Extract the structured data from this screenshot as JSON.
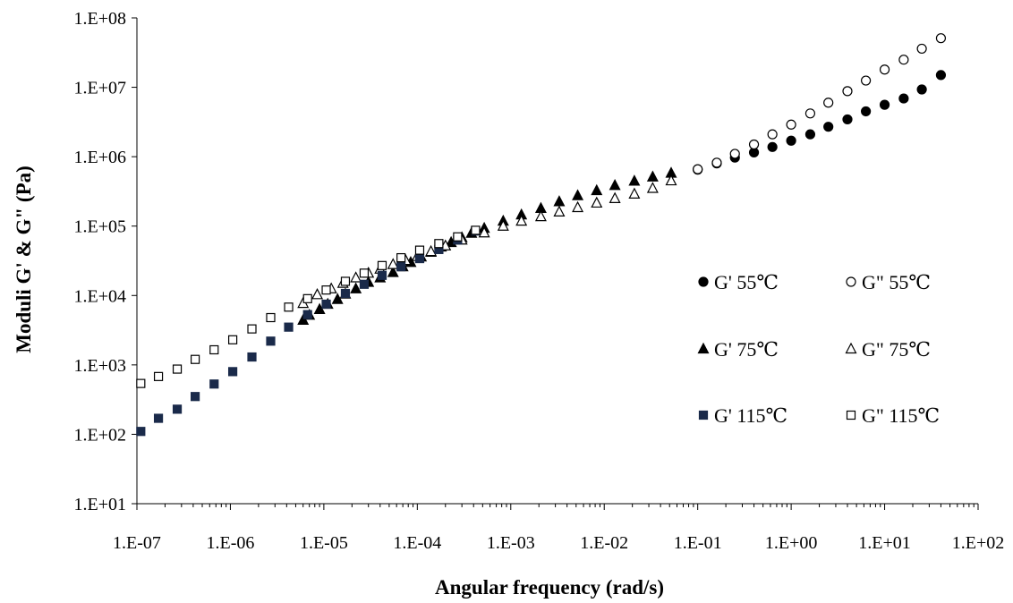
{
  "chart_data": {
    "type": "scatter",
    "title": "",
    "xlabel": "Angular frequency (rad/s)",
    "ylabel": "Moduli G' & G\" (Pa)",
    "xscale": "log",
    "yscale": "log",
    "xlim": [
      1e-07,
      100
    ],
    "ylim": [
      10,
      100000000
    ],
    "grid": false,
    "legend_position": "right, middle",
    "x_ticks": [
      {
        "value": 1e-07,
        "label": "1.E-07"
      },
      {
        "value": 1e-06,
        "label": "1.E-06"
      },
      {
        "value": 1e-05,
        "label": "1.E-05"
      },
      {
        "value": 0.0001,
        "label": "1.E-04"
      },
      {
        "value": 0.001,
        "label": "1.E-03"
      },
      {
        "value": 0.01,
        "label": "1.E-02"
      },
      {
        "value": 0.1,
        "label": "1.E-01"
      },
      {
        "value": 1,
        "label": "1.E+00"
      },
      {
        "value": 10,
        "label": "1.E+01"
      },
      {
        "value": 100,
        "label": "1.E+02"
      }
    ],
    "y_ticks": [
      {
        "value": 10,
        "label": "1.E+01"
      },
      {
        "value": 100,
        "label": "1.E+02"
      },
      {
        "value": 1000,
        "label": "1.E+03"
      },
      {
        "value": 10000,
        "label": "1.E+04"
      },
      {
        "value": 100000,
        "label": "1.E+05"
      },
      {
        "value": 1000000,
        "label": "1.E+06"
      },
      {
        "value": 10000000,
        "label": "1.E+07"
      },
      {
        "value": 100000000,
        "label": "1.E+08"
      }
    ],
    "series": [
      {
        "name": "G' 55℃",
        "marker": "circle",
        "filled": true,
        "color": "#000000",
        "points": [
          [
            0.1,
            650000.0
          ],
          [
            0.16,
            800000.0
          ],
          [
            0.25,
            970000.0
          ],
          [
            0.4,
            1150000.0
          ],
          [
            0.63,
            1380000.0
          ],
          [
            1.0,
            1700000.0
          ],
          [
            1.6,
            2100000.0
          ],
          [
            2.5,
            2700000.0
          ],
          [
            4.0,
            3450000.0
          ],
          [
            6.3,
            4500000.0
          ],
          [
            10,
            5600000.0
          ],
          [
            16,
            6900000.0
          ],
          [
            25,
            9300000.0
          ],
          [
            40,
            15000000.0
          ]
        ]
      },
      {
        "name": "G\" 55℃",
        "marker": "circle",
        "filled": false,
        "color": "#000000",
        "points": [
          [
            0.1,
            660000.0
          ],
          [
            0.16,
            820000.0
          ],
          [
            0.25,
            1100000.0
          ],
          [
            0.4,
            1500000.0
          ],
          [
            0.63,
            2100000.0
          ],
          [
            1.0,
            2900000.0
          ],
          [
            1.6,
            4200000.0
          ],
          [
            2.5,
            6000000.0
          ],
          [
            4.0,
            8800000.0
          ],
          [
            6.3,
            12500000.0
          ],
          [
            10,
            18000000.0
          ],
          [
            16,
            25000000.0
          ],
          [
            25,
            36000000.0
          ],
          [
            40,
            51000000.0
          ]
        ]
      },
      {
        "name": "G' 75℃",
        "marker": "triangle",
        "filled": true,
        "color": "#000000",
        "points": [
          [
            6e-06,
            4400.0
          ],
          [
            7e-06,
            5200.0
          ],
          [
            9e-06,
            6300.0
          ],
          [
            1.1e-05,
            7500.0
          ],
          [
            1.4e-05,
            8800.0
          ],
          [
            1.7e-05,
            10500.0
          ],
          [
            2.2e-05,
            12500.0
          ],
          [
            3e-05,
            15500.0
          ],
          [
            4e-05,
            18000.0
          ],
          [
            5.5e-05,
            21500.0
          ],
          [
            7e-05,
            26000.0
          ],
          [
            8.5e-05,
            30000.0
          ],
          [
            0.00011,
            36000.0
          ],
          [
            0.00014,
            42000.0
          ],
          [
            0.00018,
            50000.0
          ],
          [
            0.00023,
            58000.0
          ],
          [
            0.0003,
            68000.0
          ],
          [
            0.00038,
            79000.0
          ],
          [
            0.00052,
            93000.0
          ],
          [
            0.00083,
            118000.0
          ],
          [
            0.0013,
            145000.0
          ],
          [
            0.0021,
            180000.0
          ],
          [
            0.0033,
            225000.0
          ],
          [
            0.0052,
            275000.0
          ],
          [
            0.0083,
            325000.0
          ],
          [
            0.013,
            385000.0
          ],
          [
            0.021,
            445000.0
          ],
          [
            0.033,
            510000.0
          ],
          [
            0.052,
            580000.0
          ]
        ]
      },
      {
        "name": "G\" 75℃",
        "marker": "triangle",
        "filled": false,
        "color": "#000000",
        "points": [
          [
            6e-06,
            7700.0
          ],
          [
            8.5e-06,
            10300.0
          ],
          [
            1.2e-05,
            12500.0
          ],
          [
            1.6e-05,
            15000.0
          ],
          [
            2.2e-05,
            18000.0
          ],
          [
            3e-05,
            21000.0
          ],
          [
            4e-05,
            24000.0
          ],
          [
            5.5e-05,
            28000.0
          ],
          [
            7.5e-05,
            32000.0
          ],
          [
            0.0001,
            36500.0
          ],
          [
            0.00014,
            43000.0
          ],
          [
            0.0002,
            52000.0
          ],
          [
            0.0003,
            63000.0
          ],
          [
            0.00052,
            80000.0
          ],
          [
            0.00083,
            100000.0
          ],
          [
            0.0013,
            118000.0
          ],
          [
            0.0021,
            137000.0
          ],
          [
            0.0033,
            160000.0
          ],
          [
            0.0052,
            185000.0
          ],
          [
            0.0083,
            215000.0
          ],
          [
            0.013,
            250000.0
          ],
          [
            0.021,
            290000.0
          ],
          [
            0.033,
            350000.0
          ],
          [
            0.052,
            450000.0
          ]
        ]
      },
      {
        "name": "G' 115℃",
        "marker": "square",
        "filled": true,
        "color": "#1a2a4a",
        "points": [
          [
            1.1e-07,
            110
          ],
          [
            1.7e-07,
            170
          ],
          [
            2.7e-07,
            230
          ],
          [
            4.2e-07,
            350
          ],
          [
            6.7e-07,
            530
          ],
          [
            1.06e-06,
            800
          ],
          [
            1.7e-06,
            1300.0
          ],
          [
            2.7e-06,
            2200.0
          ],
          [
            4.2e-06,
            3500.0
          ],
          [
            6.7e-06,
            5300.0
          ],
          [
            1.06e-05,
            7500.0
          ],
          [
            1.7e-05,
            10700.0
          ],
          [
            2.7e-05,
            14500.0
          ],
          [
            4.2e-05,
            19500.0
          ],
          [
            6.7e-05,
            26000.0
          ],
          [
            0.000106,
            34000.0
          ],
          [
            0.00017,
            46000.0
          ],
          [
            0.00027,
            63000.0
          ],
          [
            0.00042,
            85000.0
          ]
        ]
      },
      {
        "name": "G\" 115℃",
        "marker": "square",
        "filled": false,
        "color": "#000000",
        "points": [
          [
            1.1e-07,
            540
          ],
          [
            1.7e-07,
            680
          ],
          [
            2.7e-07,
            870
          ],
          [
            4.2e-07,
            1200.0
          ],
          [
            6.7e-07,
            1650.0
          ],
          [
            1.06e-06,
            2300.0
          ],
          [
            1.7e-06,
            3300.0
          ],
          [
            2.7e-06,
            4800.0
          ],
          [
            4.2e-06,
            6800.0
          ],
          [
            6.7e-06,
            9000.0
          ],
          [
            1.06e-05,
            12000.0
          ],
          [
            1.7e-05,
            16000.0
          ],
          [
            2.7e-05,
            21000.0
          ],
          [
            4.2e-05,
            27000.0
          ],
          [
            6.7e-05,
            35000.0
          ],
          [
            0.000106,
            45000.0
          ],
          [
            0.00017,
            56000.0
          ],
          [
            0.00027,
            70000.0
          ],
          [
            0.00042,
            87000.0
          ]
        ]
      }
    ],
    "legend": [
      {
        "series": 0,
        "label": "G' 55℃"
      },
      {
        "series": 1,
        "label": "G\" 55℃"
      },
      {
        "series": 2,
        "label": "G' 75℃"
      },
      {
        "series": 3,
        "label": "G\" 75℃"
      },
      {
        "series": 4,
        "label": "G' 115℃"
      },
      {
        "series": 5,
        "label": "G\" 115℃"
      }
    ]
  }
}
